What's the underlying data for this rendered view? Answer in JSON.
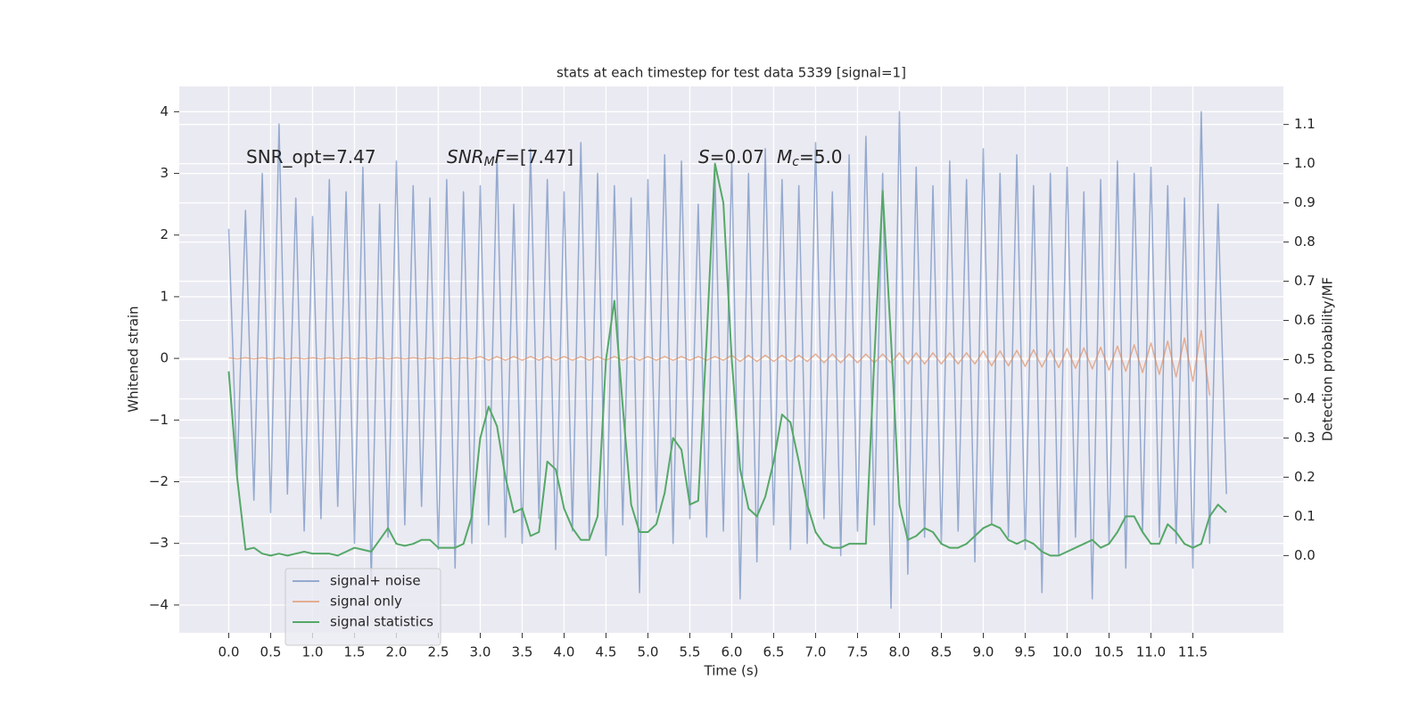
{
  "chart_data": {
    "type": "line",
    "title": "stats at each timestep for test data 5339 [signal=1]",
    "xlabel": "Time (s)",
    "ylabel": "Whitened strain",
    "y2label": "Detection probability/MF",
    "annotations": [
      [
        "SNR_opt=7.47"
      ],
      [
        "SNR",
        "M",
        "F",
        "=[7.47]"
      ],
      [
        "S",
        "=0.07",
        "M",
        "c",
        "=5.0"
      ]
    ],
    "xlim": [
      -0.59,
      12.58
    ],
    "ylim": [
      -4.45,
      4.41
    ],
    "y2lim": [
      -0.197,
      1.197
    ],
    "xticks": [
      {
        "value": 0,
        "label": "0.0"
      },
      0.5,
      {
        "value": 1,
        "label": "1.0"
      },
      1.5,
      {
        "value": 2,
        "label": "2.0"
      },
      2.5,
      {
        "value": 3,
        "label": "3.0"
      },
      3.5,
      {
        "value": 4,
        "label": "4.0"
      },
      4.5,
      {
        "value": 5,
        "label": "5.0"
      },
      5.5,
      {
        "value": 6,
        "label": "6.0"
      },
      6.5,
      {
        "value": 7,
        "label": "7.0"
      },
      7.5,
      {
        "value": 8,
        "label": "8.0"
      },
      8.5,
      {
        "value": 9,
        "label": "9.0"
      },
      9.5,
      {
        "value": 10,
        "label": "10.0"
      },
      10.5,
      {
        "value": 11,
        "label": "11.0"
      },
      11.5
    ],
    "yticks": [
      {
        "value": -4,
        "label": "−4"
      },
      {
        "value": -3,
        "label": "−3"
      },
      {
        "value": -2,
        "label": "−2"
      },
      {
        "value": -1,
        "label": "−1"
      },
      0,
      1,
      2,
      3,
      4
    ],
    "y2ticks": [
      {
        "value": 0,
        "label": "0.0"
      },
      0.1,
      0.2,
      0.3,
      0.4,
      0.5,
      0.6,
      0.7,
      0.8,
      0.9,
      {
        "value": 1,
        "label": "1.0"
      },
      1.1
    ],
    "grid": true,
    "legend": "lower left",
    "x": [
      0,
      0.1,
      0.2,
      0.3,
      0.4,
      0.5,
      0.6,
      0.7,
      0.8,
      0.9,
      1,
      1.1,
      1.2,
      1.3,
      1.4,
      1.5,
      1.6,
      1.7,
      1.8,
      1.9,
      2,
      2.1,
      2.2,
      2.3,
      2.4,
      2.5,
      2.6,
      2.7,
      2.8,
      2.9,
      3,
      3.1,
      3.2,
      3.3,
      3.4,
      3.5,
      3.6,
      3.7,
      3.8,
      3.9,
      4,
      4.1,
      4.2,
      4.3,
      4.4,
      4.5,
      4.6,
      4.7,
      4.8,
      4.9,
      5,
      5.1,
      5.2,
      5.3,
      5.4,
      5.5,
      5.6,
      5.7,
      5.8,
      5.9,
      6,
      6.1,
      6.2,
      6.3,
      6.4,
      6.5,
      6.6,
      6.7,
      6.8,
      6.9,
      7,
      7.1,
      7.2,
      7.3,
      7.4,
      7.5,
      7.6,
      7.7,
      7.8,
      7.9,
      8,
      8.1,
      8.2,
      8.3,
      8.4,
      8.5,
      8.6,
      8.7,
      8.8,
      8.9,
      9,
      9.1,
      9.2,
      9.3,
      9.4,
      9.5,
      9.6,
      9.7,
      9.8,
      9.9,
      10,
      10.1,
      10.2,
      10.3,
      10.4,
      10.5,
      10.6,
      10.7,
      10.8,
      10.9,
      11,
      11.1,
      11.2,
      11.3,
      11.4,
      11.5,
      11.6,
      11.7,
      11.8,
      11.9
    ],
    "series": [
      {
        "name": "signal+ noise",
        "color": "#4c72b0",
        "values": [
          2.1,
          -1.9,
          2.4,
          -2.3,
          3.0,
          -2.5,
          3.8,
          -2.2,
          2.6,
          -2.8,
          2.3,
          -2.6,
          2.9,
          -2.4,
          2.7,
          -3.0,
          3.1,
          -3.6,
          2.5,
          -2.9,
          3.2,
          -2.7,
          2.8,
          -2.4,
          2.6,
          -3.1,
          2.9,
          -3.4,
          2.7,
          -3.0,
          2.8,
          -2.7,
          3.3,
          -2.9,
          2.5,
          -3.0,
          3.4,
          -2.6,
          2.9,
          -3.1,
          2.7,
          -2.8,
          3.5,
          -2.9,
          3.0,
          -3.2,
          2.8,
          -2.7,
          2.6,
          -3.8,
          2.9,
          -2.5,
          3.3,
          -3.0,
          3.2,
          -2.6,
          2.5,
          -2.9,
          3.0,
          -2.8,
          3.2,
          -3.9,
          3.0,
          -3.3,
          3.4,
          -2.7,
          2.9,
          -3.1,
          2.8,
          -3.0,
          3.5,
          -2.6,
          2.7,
          -3.2,
          3.3,
          -2.8,
          3.6,
          -2.7,
          3.0,
          -4.05,
          4.0,
          -3.5,
          3.1,
          -2.9,
          2.8,
          -3.0,
          3.2,
          -2.8,
          2.9,
          -3.3,
          3.4,
          -2.7,
          3.0,
          -2.9,
          3.3,
          -3.1,
          2.8,
          -3.8,
          3.0,
          -3.2,
          3.1,
          -2.9,
          2.7,
          -3.9,
          2.9,
          -3.0,
          3.2,
          -3.4,
          3.0,
          -2.8,
          3.1,
          -2.9,
          2.8,
          -3.0,
          2.6,
          -3.4,
          4.0,
          -3.0,
          2.5,
          -2.2
        ]
      },
      {
        "name": "signal only",
        "color": "#dd8452",
        "values": [
          0.01,
          -0.01,
          0.01,
          -0.01,
          0.01,
          -0.01,
          0.01,
          -0.01,
          0.01,
          -0.01,
          0.01,
          -0.01,
          0.01,
          -0.01,
          0.01,
          -0.01,
          0.01,
          -0.01,
          0.01,
          -0.01,
          0.01,
          -0.01,
          0.01,
          -0.01,
          0.01,
          -0.01,
          0.01,
          -0.01,
          0.01,
          -0.01,
          0.03,
          -0.03,
          0.03,
          -0.03,
          0.03,
          -0.03,
          0.03,
          -0.03,
          0.03,
          -0.03,
          0.03,
          -0.03,
          0.03,
          -0.03,
          0.03,
          -0.03,
          0.03,
          -0.03,
          0.03,
          -0.03,
          0.03,
          -0.03,
          0.03,
          -0.03,
          0.03,
          -0.03,
          0.03,
          -0.03,
          0.03,
          -0.03,
          0.05,
          -0.05,
          0.05,
          -0.05,
          0.05,
          -0.05,
          0.05,
          -0.05,
          0.05,
          -0.05,
          0.07,
          -0.07,
          0.07,
          -0.07,
          0.07,
          -0.07,
          0.07,
          -0.07,
          0.07,
          -0.07,
          0.09,
          -0.09,
          0.09,
          -0.09,
          0.09,
          -0.09,
          0.09,
          -0.09,
          0.09,
          -0.09,
          0.12,
          -0.12,
          0.12,
          -0.12,
          0.13,
          -0.13,
          0.14,
          -0.14,
          0.14,
          -0.15,
          0.16,
          -0.16,
          0.17,
          -0.17,
          0.18,
          -0.19,
          0.2,
          -0.21,
          0.22,
          -0.23,
          0.25,
          -0.26,
          0.28,
          -0.3,
          0.33,
          -0.37,
          0.45,
          -0.6,
          null,
          null
        ]
      },
      {
        "name": "signal statistics",
        "color": "#55a868",
        "axis": "y2",
        "values": [
          0.47,
          0.2,
          0.015,
          0.02,
          0.005,
          0,
          0.005,
          0,
          0.005,
          0.01,
          0.005,
          0.005,
          0.005,
          0,
          0.01,
          0.02,
          0.015,
          0.01,
          0.04,
          0.07,
          0.03,
          0.025,
          0.03,
          0.04,
          0.04,
          0.02,
          0.02,
          0.02,
          0.03,
          0.1,
          0.3,
          0.38,
          0.33,
          0.2,
          0.11,
          0.12,
          0.05,
          0.06,
          0.24,
          0.22,
          0.12,
          0.07,
          0.04,
          0.04,
          0.1,
          0.5,
          0.65,
          0.38,
          0.13,
          0.06,
          0.06,
          0.08,
          0.16,
          0.3,
          0.27,
          0.13,
          0.14,
          0.55,
          1.0,
          0.9,
          0.5,
          0.22,
          0.12,
          0.1,
          0.15,
          0.24,
          0.36,
          0.34,
          0.24,
          0.13,
          0.06,
          0.03,
          0.02,
          0.02,
          0.03,
          0.03,
          0.03,
          0.5,
          0.93,
          0.55,
          0.13,
          0.04,
          0.05,
          0.07,
          0.06,
          0.03,
          0.02,
          0.02,
          0.03,
          0.05,
          0.07,
          0.08,
          0.07,
          0.04,
          0.03,
          0.04,
          0.03,
          0.01,
          0,
          0,
          0.01,
          0.02,
          0.03,
          0.04,
          0.02,
          0.03,
          0.06,
          0.1,
          0.1,
          0.06,
          0.03,
          0.03,
          0.08,
          0.06,
          0.03,
          0.02,
          0.03,
          0.1,
          0.13,
          0.11
        ]
      }
    ]
  }
}
